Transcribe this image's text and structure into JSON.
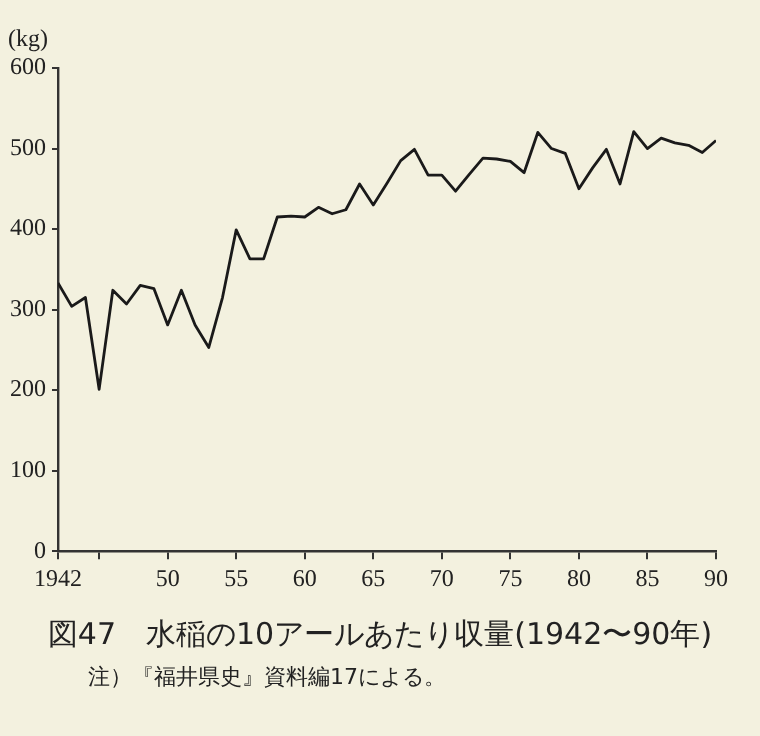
{
  "chart_data": {
    "type": "line",
    "title": "図47　水稲の10アールあたり収量(1942〜90年)",
    "ylabel": "(kg)",
    "annotations": [
      "注）『福井県史』資料編17による。"
    ],
    "x": [
      1942,
      1943,
      1944,
      1945,
      1946,
      1947,
      1948,
      1949,
      1950,
      1951,
      1952,
      1953,
      1954,
      1955,
      1956,
      1957,
      1958,
      1959,
      1960,
      1961,
      1962,
      1963,
      1964,
      1965,
      1966,
      1967,
      1968,
      1969,
      1970,
      1971,
      1972,
      1973,
      1974,
      1975,
      1976,
      1977,
      1978,
      1979,
      1980,
      1981,
      1982,
      1983,
      1984,
      1985,
      1986,
      1987,
      1988,
      1989,
      1990
    ],
    "series": [
      {
        "color": "#1a1a1a",
        "values": [
          333,
          304,
          315,
          201,
          324,
          307,
          330,
          326,
          281,
          324,
          281,
          253,
          315,
          399,
          363,
          363,
          415,
          416,
          415,
          427,
          419,
          424,
          456,
          430,
          457,
          485,
          499,
          467,
          467,
          447,
          468,
          488,
          487,
          484,
          470,
          520,
          500,
          494,
          450,
          476,
          499,
          456,
          521,
          500,
          513,
          507,
          504,
          495,
          510
        ]
      }
    ],
    "xlim": [
      1942,
      1990
    ],
    "xticks": [
      1942,
      {
        "value": 1945,
        "label": null
      },
      {
        "value": 1950,
        "label": "50"
      },
      {
        "value": 1955,
        "label": "55"
      },
      {
        "value": 1960,
        "label": "60"
      },
      {
        "value": 1965,
        "label": "65"
      },
      {
        "value": 1970,
        "label": "70"
      },
      {
        "value": 1975,
        "label": "75"
      },
      {
        "value": 1980,
        "label": "80"
      },
      {
        "value": 1985,
        "label": "85"
      },
      {
        "value": 1990,
        "label": "90"
      }
    ],
    "ylim": [
      0,
      600
    ],
    "yticks": [
      0,
      100,
      200,
      300,
      400,
      500,
      600
    ],
    "grid": false,
    "legend": false,
    "marker": "none",
    "line_style": "solid"
  }
}
